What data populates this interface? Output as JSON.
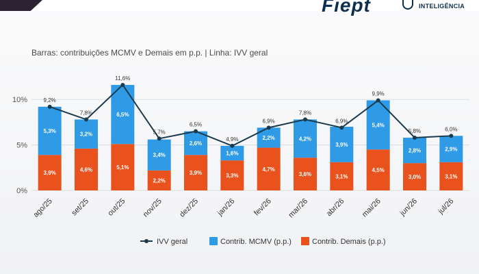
{
  "header": {
    "brand_left": "Fiept",
    "brand_right": "INTELIGÊNCIA"
  },
  "chart_data": {
    "type": "bar",
    "stacked": true,
    "subtitle": "Barras: contribuições MCMV e Demais em p.p. | Linha: IVV geral",
    "categories": [
      "ago/25",
      "set/25",
      "out/25",
      "nov/25",
      "dez/25",
      "jan/26",
      "fev/26",
      "mar/26",
      "abr/26",
      "mai/26",
      "jun/26",
      "jul/26"
    ],
    "series": [
      {
        "name": "Contrib. Demais (p.p.)",
        "kind": "bar",
        "color": "#e9521c",
        "values": [
          3.9,
          4.6,
          5.1,
          2.2,
          3.9,
          3.3,
          4.7,
          3.6,
          3.1,
          4.5,
          3.0,
          3.1
        ],
        "labels": [
          "3,9%",
          "4,6%",
          "5,1%",
          "2,2%",
          "3,9%",
          "3,3%",
          "4,7%",
          "3,6%",
          "3,1%",
          "4,5%",
          "3,0%",
          "3,1%"
        ]
      },
      {
        "name": "Contrib. MCMV (p.p.)",
        "kind": "bar",
        "color": "#2f9ae6",
        "values": [
          5.3,
          3.2,
          6.5,
          3.4,
          2.6,
          1.6,
          2.2,
          4.2,
          3.9,
          5.4,
          2.8,
          2.9
        ],
        "labels": [
          "5,3%",
          "3,2%",
          "6,5%",
          "3,4%",
          "2,6%",
          "1,6%",
          "2,2%",
          "4,2%",
          "3,9%",
          "5,4%",
          "2,8%",
          "2,9%"
        ]
      },
      {
        "name": "IVV geral",
        "kind": "line",
        "color": "#1b3a4b",
        "values": [
          9.2,
          7.8,
          11.6,
          5.7,
          6.5,
          4.9,
          6.9,
          7.8,
          6.9,
          9.9,
          5.8,
          6.0
        ],
        "labels": [
          "9,2%",
          "7,8%",
          "11,6%",
          "5,7%",
          "6,5%",
          "4,9%",
          "6,9%",
          "7,8%",
          "6,9%",
          "9,9%",
          "5,8%",
          "6,0%"
        ]
      }
    ],
    "ylim": [
      0,
      12.8
    ],
    "yticks": [
      0,
      5,
      10
    ],
    "ytick_labels": [
      "0%",
      "5%",
      "10%"
    ],
    "grid": true,
    "legend": {
      "placement": "bottom-center",
      "order": [
        "IVV geral",
        "Contrib. MCMV (p.p.)",
        "Contrib. Demais (p.p.)"
      ]
    }
  }
}
